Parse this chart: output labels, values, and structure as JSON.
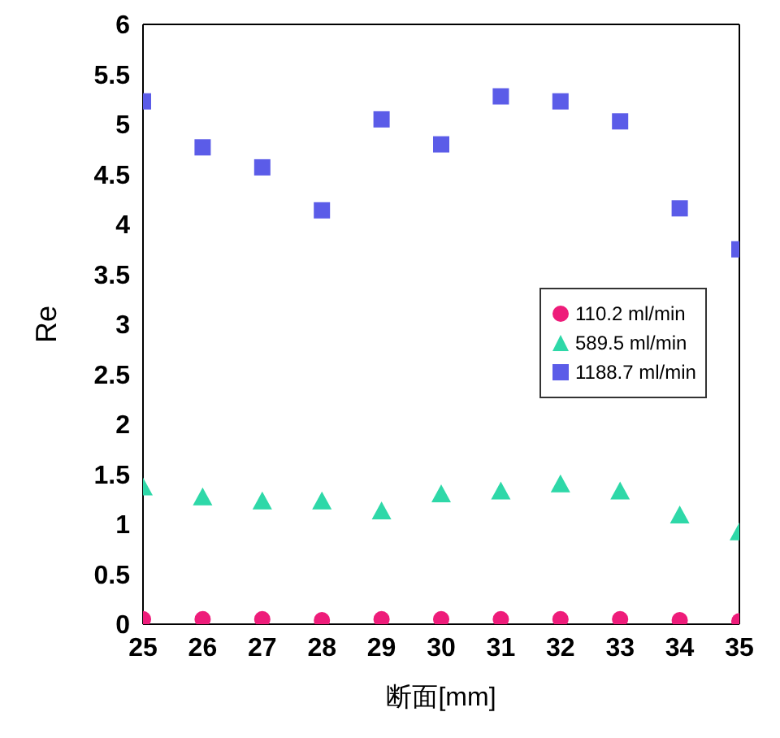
{
  "chart_data": {
    "type": "scatter",
    "xlabel": "断面[mm]",
    "ylabel": "Re",
    "x": [
      25,
      26,
      27,
      28,
      29,
      30,
      31,
      32,
      33,
      34,
      35
    ],
    "xlim": [
      25,
      35
    ],
    "xticks": [
      25,
      26,
      27,
      28,
      29,
      30,
      31,
      32,
      33,
      34,
      35
    ],
    "ylim": [
      0,
      6
    ],
    "yticks": [
      0,
      0.5,
      1,
      1.5,
      2,
      2.5,
      3,
      3.5,
      4,
      4.5,
      5,
      5.5,
      6
    ],
    "grid": false,
    "legend": "right",
    "series": [
      {
        "name": "110.2 ml/min",
        "color": "#ee1c7a",
        "marker": "circle",
        "values": [
          0.05,
          0.05,
          0.05,
          0.04,
          0.05,
          0.05,
          0.05,
          0.05,
          0.05,
          0.04,
          0.03
        ]
      },
      {
        "name": "589.5 ml/min",
        "color": "#2ed8a8",
        "marker": "triangle",
        "values": [
          1.37,
          1.27,
          1.23,
          1.23,
          1.13,
          1.3,
          1.33,
          1.4,
          1.33,
          1.09,
          0.92
        ]
      },
      {
        "name": "1188.7 ml/min",
        "color": "#5b5ce8",
        "marker": "square",
        "values": [
          5.23,
          4.77,
          4.57,
          4.14,
          5.05,
          4.8,
          5.28,
          5.23,
          5.03,
          4.16,
          3.75
        ]
      }
    ]
  }
}
